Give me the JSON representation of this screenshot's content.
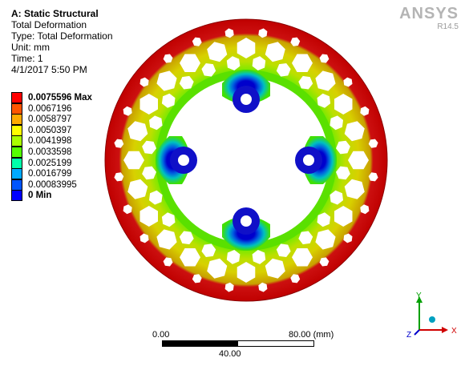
{
  "info": {
    "title": "A: Static Structural",
    "result": "Total Deformation",
    "type": "Type: Total Deformation",
    "unit": "Unit: mm",
    "time": "Time: 1",
    "date": "4/1/2017 5:50 PM"
  },
  "logo": {
    "brand": "ANSYS",
    "version": "R14.5"
  },
  "legend": [
    {
      "label": "0.0075596 Max",
      "color": "#ff0000",
      "bold": true
    },
    {
      "label": "0.0067196",
      "color": "#ff5500"
    },
    {
      "label": "0.0058797",
      "color": "#ffaa00"
    },
    {
      "label": "0.0050397",
      "color": "#ffff00"
    },
    {
      "label": "0.0041998",
      "color": "#aaff00"
    },
    {
      "label": "0.0033598",
      "color": "#55ff00"
    },
    {
      "label": "0.0025199",
      "color": "#00ffaa"
    },
    {
      "label": "0.0016799",
      "color": "#00aaff"
    },
    {
      "label": "0.00083995",
      "color": "#0055ff"
    },
    {
      "label": "0 Min",
      "color": "#0000ff",
      "bold": true
    }
  ],
  "scale": {
    "left": "0.00",
    "right": "80.00 (mm)",
    "mid": "40.00"
  },
  "triad": {
    "y": "Y",
    "x": "X",
    "z": "Z"
  }
}
